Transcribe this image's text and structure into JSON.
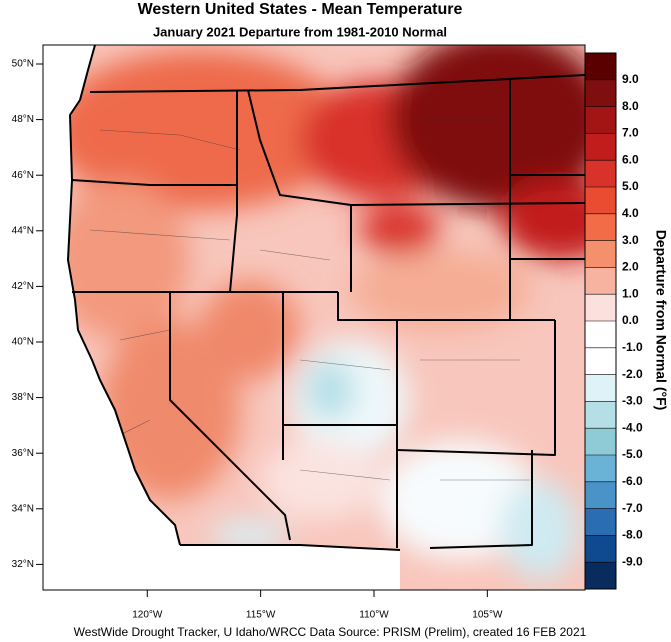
{
  "header": {
    "title": "Western United States - Mean Temperature",
    "subtitle": "January 2021  Departure from 1981-2010 Normal"
  },
  "map": {
    "lat_ticks": [
      {
        "value": 50,
        "label": "50°N"
      },
      {
        "value": 48,
        "label": "48°N"
      },
      {
        "value": 46,
        "label": "46°N"
      },
      {
        "value": 44,
        "label": "44°N"
      },
      {
        "value": 42,
        "label": "42°N"
      },
      {
        "value": 40,
        "label": "40°N"
      },
      {
        "value": 38,
        "label": "38°N"
      },
      {
        "value": 36,
        "label": "36°N"
      },
      {
        "value": 34,
        "label": "34°N"
      },
      {
        "value": 32,
        "label": "32°N"
      }
    ],
    "lon_ticks": [
      {
        "value": -120,
        "label": "120°W"
      },
      {
        "value": -115,
        "label": "115°W"
      },
      {
        "value": -110,
        "label": "110°W"
      },
      {
        "value": -105,
        "label": "105°W"
      }
    ]
  },
  "colorbar": {
    "title": "Departure from Normal (°F)",
    "ticks": [
      {
        "value": 9,
        "label": "9.0"
      },
      {
        "value": 8,
        "label": "8.0"
      },
      {
        "value": 7,
        "label": "7.0"
      },
      {
        "value": 6,
        "label": "6.0"
      },
      {
        "value": 5,
        "label": "5.0"
      },
      {
        "value": 4,
        "label": "4.0"
      },
      {
        "value": 3,
        "label": "3.0"
      },
      {
        "value": 2,
        "label": "2.0"
      },
      {
        "value": 1,
        "label": "1.0"
      },
      {
        "value": 0,
        "label": "0.0"
      },
      {
        "value": -1,
        "label": "-1.0"
      },
      {
        "value": -2,
        "label": "-2.0"
      },
      {
        "value": -3,
        "label": "-3.0"
      },
      {
        "value": -4,
        "label": "-4.0"
      },
      {
        "value": -5,
        "label": "-5.0"
      },
      {
        "value": -6,
        "label": "-6.0"
      },
      {
        "value": -7,
        "label": "-7.0"
      },
      {
        "value": -8,
        "label": "-8.0"
      },
      {
        "value": -9,
        "label": "-9.0"
      }
    ],
    "colors": [
      "#5a0000",
      "#7f0e0e",
      "#a31515",
      "#c21d1d",
      "#d9322a",
      "#ea4c32",
      "#f26c47",
      "#f5906c",
      "#f8b3a0",
      "#fce0de",
      "#ffffff",
      "#ffffff",
      "#dff2f8",
      "#b5dfe6",
      "#8fcbd6",
      "#6bb3d6",
      "#4a93c8",
      "#2a6db0",
      "#0f4a8f",
      "#082c5e"
    ]
  },
  "footer": "WestWide Drought Tracker, U Idaho/WRCC Data Source: PRISM (Prelim), created 16 FEB 2021"
}
